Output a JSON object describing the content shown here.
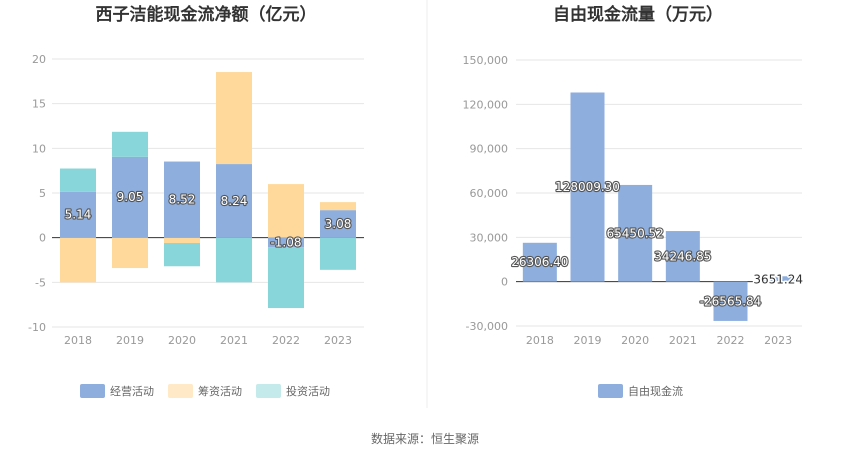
{
  "source_text": "数据来源：恒生聚源",
  "colors": {
    "operating": "#8eaedd",
    "financing": "#ffd99c",
    "investing": "#88d6da",
    "fcf": "#8eaedd",
    "grid": "#e6e6e6",
    "axis": "#333333"
  },
  "chart_data": [
    {
      "type": "bar",
      "stacked": true,
      "title": "西子洁能现金流净额（亿元）",
      "categories": [
        "2018",
        "2019",
        "2020",
        "2021",
        "2022",
        "2023"
      ],
      "series": [
        {
          "name": "经营活动",
          "values": [
            5.14,
            9.05,
            8.52,
            8.24,
            -1.08,
            3.08
          ],
          "labels": [
            "5.14",
            "9.05",
            "8.52",
            "8.24",
            "-1.08",
            "3.08"
          ]
        },
        {
          "name": "筹资活动",
          "values": [
            -5.0,
            -3.4,
            -0.6,
            10.3,
            6.0,
            0.9
          ]
        },
        {
          "name": "投资活动",
          "values": [
            2.6,
            2.8,
            -2.6,
            -5.0,
            -6.8,
            -3.6
          ]
        }
      ],
      "ylim": [
        -10,
        20
      ],
      "yticks": [
        "20",
        "15",
        "10",
        "5",
        "0",
        "-5",
        "-10"
      ],
      "ytick_values": [
        20,
        15,
        10,
        5,
        0,
        -5,
        -10
      ],
      "legend": [
        "经营活动",
        "筹资活动",
        "投资活动"
      ]
    },
    {
      "type": "bar",
      "title": "自由现金流量（万元）",
      "categories": [
        "2018",
        "2019",
        "2020",
        "2021",
        "2022",
        "2023"
      ],
      "series": [
        {
          "name": "自由现金流",
          "values": [
            26306.4,
            128009.3,
            65450.52,
            34246.85,
            -26565.84,
            3651.24
          ],
          "labels": [
            "26306.40",
            "128009.30",
            "65450.52",
            "34246.85",
            "-26565.84",
            "3651.24"
          ]
        }
      ],
      "ylim": [
        -30000,
        150000
      ],
      "yticks": [
        "150,000",
        "120,000",
        "90,000",
        "60,000",
        "30,000",
        "0",
        "-30,000"
      ],
      "ytick_values": [
        150000,
        120000,
        90000,
        60000,
        30000,
        0,
        -30000
      ],
      "legend": [
        "自由现金流"
      ]
    }
  ]
}
